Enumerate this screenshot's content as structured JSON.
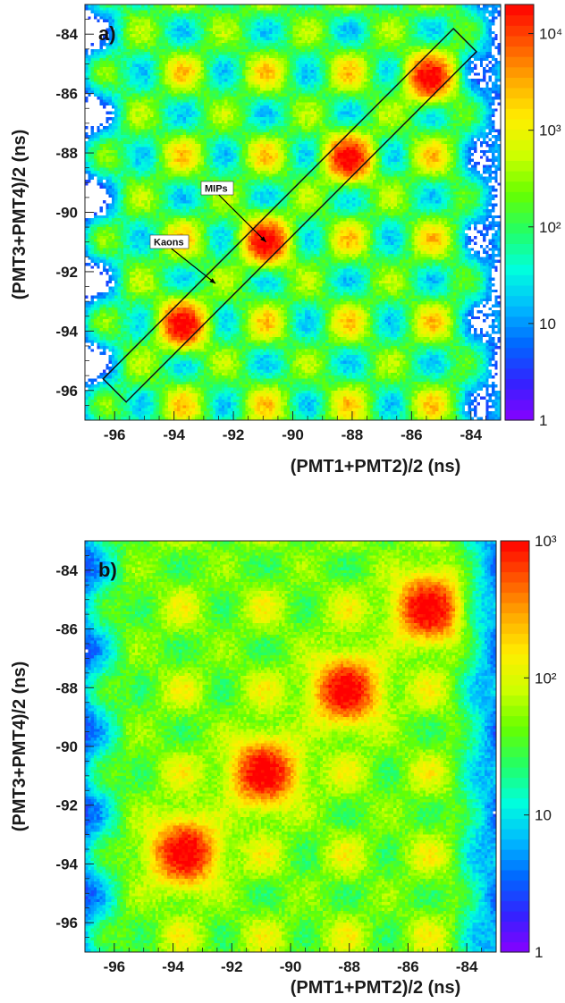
{
  "chart_data": [
    {
      "type": "heatmap",
      "panel_label": "a)",
      "xlabel": "(PMT1+PMT2)/2 (ns)",
      "ylabel": "(PMT3+PMT4)/2 (ns)",
      "xlim": [
        -97,
        -83
      ],
      "ylim": [
        -97,
        -83
      ],
      "x_ticks": [
        -96,
        -94,
        -92,
        -90,
        -88,
        -86,
        -84
      ],
      "y_ticks": [
        -84,
        -86,
        -88,
        -90,
        -92,
        -94,
        -96
      ],
      "colorbar": {
        "scale": "log",
        "range": [
          1,
          20000
        ],
        "ticks": [
          {
            "value": 1,
            "label": "1"
          },
          {
            "value": 10,
            "label": "10"
          },
          {
            "value": 100,
            "label": "10²"
          },
          {
            "value": 1000,
            "label": "10³"
          },
          {
            "value": 10000,
            "label": "10⁴"
          }
        ]
      },
      "hotspots": [
        {
          "x": -93.7,
          "y": -93.8,
          "value": 15000
        },
        {
          "x": -90.9,
          "y": -91.0,
          "value": 15000
        },
        {
          "x": -88.1,
          "y": -88.2,
          "value": 15000
        },
        {
          "x": -85.4,
          "y": -85.5,
          "value": 15000
        }
      ],
      "grid_period_ns": 2.8,
      "selection_box": {
        "from": [
          -95.7,
          -95.7
        ],
        "to": [
          -84.5,
          -84.5
        ],
        "half_width_ns": 0.55
      },
      "annotations": [
        {
          "text": "MIPs",
          "at": [
            -90.9,
            -91.0
          ]
        },
        {
          "text": "Kaons",
          "at": [
            -92.6,
            -92.4
          ]
        }
      ]
    },
    {
      "type": "heatmap",
      "panel_label": "b)",
      "xlabel": "(PMT1+PMT2)/2 (ns)",
      "ylabel": "(PMT3+PMT4)/2 (ns)",
      "xlim": [
        -97,
        -83
      ],
      "ylim": [
        -97,
        -83
      ],
      "x_ticks": [
        -96,
        -94,
        -92,
        -90,
        -88,
        -86,
        -84
      ],
      "y_ticks": [
        -84,
        -86,
        -88,
        -90,
        -92,
        -94,
        -96
      ],
      "colorbar": {
        "scale": "log",
        "range": [
          1,
          1000
        ],
        "ticks": [
          {
            "value": 1,
            "label": "1"
          },
          {
            "value": 10,
            "label": "10"
          },
          {
            "value": 100,
            "label": "10²"
          },
          {
            "value": 1000,
            "label": "10³"
          }
        ]
      },
      "hotspots": [
        {
          "x": -93.6,
          "y": -93.6,
          "value": 1000
        },
        {
          "x": -90.9,
          "y": -90.9,
          "value": 1000
        },
        {
          "x": -88.1,
          "y": -88.1,
          "value": 1000
        },
        {
          "x": -85.3,
          "y": -85.3,
          "value": 1000
        }
      ],
      "grid_period_ns": 2.8
    }
  ],
  "colors": {
    "scale": [
      "#ffffff",
      "#8800ff",
      "#3322ff",
      "#0066ff",
      "#00bbff",
      "#00ffdd",
      "#22ff66",
      "#66ff00",
      "#ccff00",
      "#ffee00",
      "#ffaa00",
      "#ff5500",
      "#ff0000"
    ]
  }
}
